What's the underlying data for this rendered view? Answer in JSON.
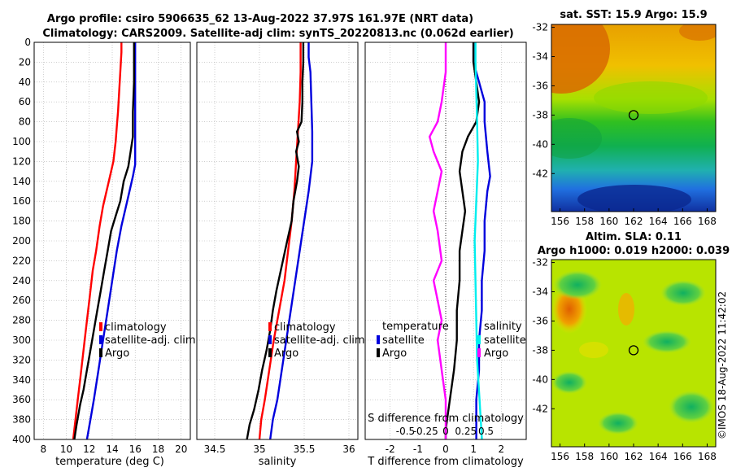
{
  "header": {
    "line1": "Argo profile: csiro 5906635_62 13-Aug-2022 37.97S 161.97E (NRT data)",
    "line2": "Climatology: CARS2009. Satellite-adj clim: synTS_20220813.nc (0.062d earlier)"
  },
  "colors": {
    "climatology": "#ff0000",
    "satellite": "#0000dd",
    "argo": "#000000",
    "salinity_diff": "#00eeee",
    "salinity_diff_legend": "#ff00ff",
    "temp_diff_series": "#ff00ff"
  },
  "chart_data": [
    {
      "type": "line",
      "name": "temperature",
      "xlabel": "temperature (deg C)",
      "ylabel": "",
      "xlim": [
        7.2,
        20.8
      ],
      "ylim": [
        400,
        0
      ],
      "xticks": [
        8,
        10,
        12,
        14,
        16,
        18,
        20
      ],
      "yticks": [
        0,
        20,
        40,
        60,
        80,
        100,
        120,
        140,
        160,
        180,
        200,
        220,
        240,
        260,
        280,
        300,
        320,
        340,
        360,
        380,
        400
      ],
      "legend": [
        "climatology",
        "satellite-adj. clim",
        "Argo"
      ],
      "series": [
        {
          "name": "climatology",
          "color": "#ff0000",
          "points": [
            [
              14.8,
              0
            ],
            [
              14.8,
              10
            ],
            [
              14.7,
              30
            ],
            [
              14.6,
              50
            ],
            [
              14.5,
              70
            ],
            [
              14.4,
              85
            ],
            [
              14.3,
              100
            ],
            [
              14.1,
              120
            ],
            [
              13.7,
              140
            ],
            [
              13.2,
              165
            ],
            [
              12.9,
              185
            ],
            [
              12.6,
              210
            ],
            [
              12.3,
              230
            ],
            [
              12.0,
              260
            ],
            [
              11.7,
              290
            ],
            [
              11.4,
              320
            ],
            [
              11.2,
              340
            ],
            [
              11.0,
              360
            ],
            [
              10.8,
              380
            ],
            [
              10.6,
              400
            ]
          ]
        },
        {
          "name": "satellite-adj. clim",
          "color": "#0000dd",
          "points": [
            [
              16.0,
              0
            ],
            [
              16.0,
              20
            ],
            [
              16.0,
              50
            ],
            [
              16.0,
              80
            ],
            [
              16.0,
              110
            ],
            [
              16.0,
              123
            ],
            [
              15.8,
              135
            ],
            [
              15.3,
              160
            ],
            [
              14.8,
              185
            ],
            [
              14.4,
              210
            ],
            [
              14.0,
              240
            ],
            [
              13.6,
              270
            ],
            [
              13.2,
              300
            ],
            [
              12.8,
              330
            ],
            [
              12.4,
              360
            ],
            [
              12.1,
              380
            ],
            [
              11.8,
              400
            ]
          ]
        },
        {
          "name": "Argo",
          "color": "#000000",
          "points": [
            [
              15.9,
              0
            ],
            [
              15.9,
              20
            ],
            [
              15.9,
              40
            ],
            [
              15.8,
              70
            ],
            [
              15.8,
              95
            ],
            [
              15.6,
              110
            ],
            [
              15.4,
              125
            ],
            [
              15.0,
              140
            ],
            [
              14.7,
              160
            ],
            [
              14.3,
              175
            ],
            [
              13.9,
              190
            ],
            [
              13.6,
              210
            ],
            [
              13.3,
              230
            ],
            [
              13.0,
              250
            ],
            [
              12.7,
              270
            ],
            [
              12.4,
              290
            ],
            [
              12.1,
              310
            ],
            [
              11.8,
              330
            ],
            [
              11.5,
              350
            ],
            [
              11.2,
              365
            ],
            [
              10.9,
              385
            ],
            [
              10.7,
              400
            ]
          ]
        }
      ]
    },
    {
      "type": "line",
      "name": "salinity",
      "xlabel": "salinity",
      "xlim": [
        34.3,
        36.1
      ],
      "ylim": [
        400,
        0
      ],
      "xticks": [
        34.5,
        35,
        35.5,
        36
      ],
      "legend": [
        "climatology",
        "satellite-adj. clim",
        "Argo"
      ],
      "series": [
        {
          "name": "climatology",
          "color": "#ff0000",
          "points": [
            [
              35.46,
              0
            ],
            [
              35.46,
              30
            ],
            [
              35.45,
              60
            ],
            [
              35.43,
              90
            ],
            [
              35.41,
              120
            ],
            [
              35.39,
              150
            ],
            [
              35.36,
              180
            ],
            [
              35.32,
              210
            ],
            [
              35.28,
              240
            ],
            [
              35.22,
              270
            ],
            [
              35.16,
              300
            ],
            [
              35.11,
              330
            ],
            [
              35.06,
              360
            ],
            [
              35.02,
              380
            ],
            [
              35.0,
              400
            ]
          ]
        },
        {
          "name": "satellite-adj. clim",
          "color": "#0000dd",
          "points": [
            [
              35.55,
              0
            ],
            [
              35.55,
              15
            ],
            [
              35.57,
              30
            ],
            [
              35.58,
              60
            ],
            [
              35.59,
              90
            ],
            [
              35.59,
              120
            ],
            [
              35.55,
              150
            ],
            [
              35.5,
              180
            ],
            [
              35.45,
              210
            ],
            [
              35.4,
              240
            ],
            [
              35.35,
              270
            ],
            [
              35.3,
              300
            ],
            [
              35.25,
              330
            ],
            [
              35.2,
              360
            ],
            [
              35.15,
              380
            ],
            [
              35.12,
              400
            ]
          ]
        },
        {
          "name": "Argo",
          "color": "#000000",
          "points": [
            [
              35.49,
              0
            ],
            [
              35.49,
              20
            ],
            [
              35.48,
              40
            ],
            [
              35.48,
              60
            ],
            [
              35.47,
              80
            ],
            [
              35.42,
              90
            ],
            [
              35.44,
              100
            ],
            [
              35.41,
              110
            ],
            [
              35.44,
              125
            ],
            [
              35.42,
              140
            ],
            [
              35.38,
              160
            ],
            [
              35.36,
              180
            ],
            [
              35.31,
              200
            ],
            [
              35.25,
              225
            ],
            [
              35.19,
              250
            ],
            [
              35.15,
              270
            ],
            [
              35.12,
              290
            ],
            [
              35.08,
              310
            ],
            [
              35.03,
              330
            ],
            [
              34.99,
              350
            ],
            [
              34.94,
              370
            ],
            [
              34.89,
              385
            ],
            [
              34.86,
              400
            ]
          ]
        }
      ]
    },
    {
      "type": "line",
      "name": "difference",
      "xlabel": "T difference from climatology",
      "xlim": [
        -2.9,
        2.9
      ],
      "ylim": [
        400,
        0
      ],
      "xticks": [
        -2,
        -1,
        0,
        1,
        2
      ],
      "top_xlabel": "S difference from climatology",
      "top_xticks": [
        -0.5,
        -0.25,
        0,
        0.25,
        0.5
      ],
      "legend_left_title": "temperature",
      "legend_left": [
        "satellite",
        "Argo"
      ],
      "legend_right_title": "salinity",
      "legend_right": [
        "satellite",
        "Argo"
      ],
      "series": [
        {
          "name": "temperature satellite",
          "color": "#0000dd",
          "points": [
            [
              1.0,
              0
            ],
            [
              1.0,
              20
            ],
            [
              1.2,
              40
            ],
            [
              1.4,
              60
            ],
            [
              1.4,
              80
            ],
            [
              1.5,
              110
            ],
            [
              1.6,
              135
            ],
            [
              1.5,
              150
            ],
            [
              1.4,
              180
            ],
            [
              1.4,
              210
            ],
            [
              1.3,
              240
            ],
            [
              1.3,
              270
            ],
            [
              1.2,
              300
            ],
            [
              1.2,
              330
            ],
            [
              1.1,
              360
            ],
            [
              1.1,
              380
            ],
            [
              1.1,
              400
            ]
          ]
        },
        {
          "name": "temperature Argo",
          "color": "#000000",
          "points": [
            [
              1.0,
              0
            ],
            [
              1.0,
              20
            ],
            [
              1.1,
              40
            ],
            [
              1.2,
              60
            ],
            [
              1.1,
              80
            ],
            [
              0.8,
              95
            ],
            [
              0.6,
              110
            ],
            [
              0.5,
              130
            ],
            [
              0.6,
              150
            ],
            [
              0.7,
              170
            ],
            [
              0.6,
              190
            ],
            [
              0.5,
              210
            ],
            [
              0.5,
              240
            ],
            [
              0.4,
              270
            ],
            [
              0.4,
              300
            ],
            [
              0.3,
              330
            ],
            [
              0.2,
              350
            ],
            [
              0.1,
              370
            ],
            [
              0.0,
              390
            ],
            [
              0.0,
              400
            ]
          ]
        },
        {
          "name": "salinity satellite",
          "color": "#00eeee",
          "points": [
            [
              0.37,
              0
            ],
            [
              0.37,
              20
            ],
            [
              0.38,
              50
            ],
            [
              0.39,
              80
            ],
            [
              0.4,
              120
            ],
            [
              0.38,
              160
            ],
            [
              0.36,
              200
            ],
            [
              0.37,
              240
            ],
            [
              0.38,
              280
            ],
            [
              0.39,
              320
            ],
            [
              0.42,
              360
            ],
            [
              0.45,
              400
            ]
          ]
        },
        {
          "name": "salinity Argo",
          "color": "#ff00ff",
          "points": [
            [
              0.0,
              0
            ],
            [
              0.0,
              30
            ],
            [
              -0.05,
              60
            ],
            [
              -0.1,
              80
            ],
            [
              -0.2,
              95
            ],
            [
              -0.15,
              110
            ],
            [
              -0.05,
              130
            ],
            [
              -0.1,
              150
            ],
            [
              -0.15,
              170
            ],
            [
              -0.1,
              190
            ],
            [
              -0.05,
              220
            ],
            [
              -0.15,
              240
            ],
            [
              -0.1,
              260
            ],
            [
              -0.05,
              280
            ],
            [
              -0.1,
              300
            ],
            [
              -0.05,
              330
            ],
            [
              0.0,
              360
            ],
            [
              0.0,
              400
            ]
          ]
        }
      ]
    },
    {
      "type": "heatmap",
      "name": "sst-map",
      "title": "sat. SST: 15.9  Argo: 15.9",
      "xlim": [
        155.3,
        168.7
      ],
      "ylim": [
        -44.6,
        -31.8
      ],
      "xticks": [
        156,
        158,
        160,
        162,
        164,
        166,
        168
      ],
      "yticks": [
        -32,
        -34,
        -36,
        -38,
        -40,
        -42
      ],
      "marker": [
        162,
        -38
      ]
    },
    {
      "type": "heatmap",
      "name": "sla-map",
      "title": "Altim. SLA: 0.11",
      "subtitle": "Argo h1000: 0.019 h2000: 0.039",
      "xlim": [
        155.3,
        168.7
      ],
      "ylim": [
        -44.6,
        -31.8
      ],
      "xticks": [
        156,
        158,
        160,
        162,
        164,
        166,
        168
      ],
      "yticks": [
        -32,
        -34,
        -36,
        -38,
        -40,
        -42
      ],
      "marker": [
        162,
        -38
      ]
    }
  ],
  "watermark": "©IMOS 18-Aug-2022 11:42:02"
}
